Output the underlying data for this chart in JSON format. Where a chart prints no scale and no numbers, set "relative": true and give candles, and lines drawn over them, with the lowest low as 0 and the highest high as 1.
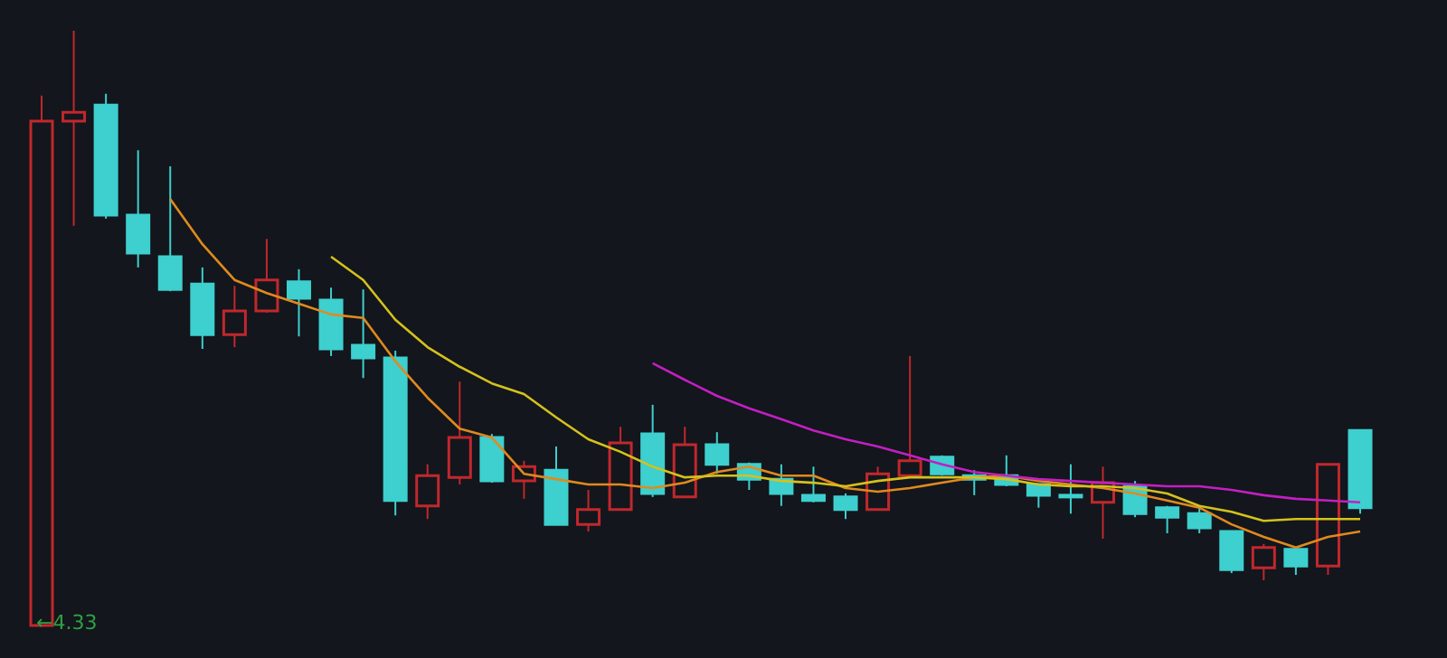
{
  "chart_data": {
    "type": "candlestick",
    "relative": true,
    "categories": [
      null,
      null,
      null,
      null,
      null,
      null,
      null,
      null,
      null,
      null,
      null,
      null,
      null,
      null,
      null,
      null,
      null,
      null,
      null,
      null,
      null,
      null,
      null,
      null,
      null,
      null,
      null,
      null,
      null,
      null,
      null,
      null,
      null,
      null,
      null,
      null,
      null,
      null,
      null,
      null,
      null,
      null
    ],
    "ohlc": [
      [
        0,
        0.891,
        0,
        0.848
      ],
      [
        0.848,
        1,
        0.672,
        0.863
      ],
      [
        0.875,
        0.894,
        0.684,
        0.69
      ],
      [
        0.69,
        0.799,
        0.602,
        0.626
      ],
      [
        0.62,
        0.772,
        0.562,
        0.565
      ],
      [
        0.574,
        0.602,
        0.465,
        0.489
      ],
      [
        0.489,
        0.571,
        0.468,
        0.529
      ],
      [
        0.529,
        0.65,
        0.526,
        0.581
      ],
      [
        0.578,
        0.599,
        0.486,
        0.55
      ],
      [
        0.547,
        0.568,
        0.453,
        0.465
      ],
      [
        0.471,
        0.565,
        0.416,
        0.45
      ],
      [
        0.45,
        0.462,
        0.185,
        0.21
      ],
      [
        0.201,
        0.271,
        0.179,
        0.252
      ],
      [
        0.249,
        0.41,
        0.237,
        0.316
      ],
      [
        0.316,
        0.322,
        0.24,
        0.243
      ],
      [
        0.243,
        0.277,
        0.213,
        0.267
      ],
      [
        0.261,
        0.301,
        0.17,
        0.17
      ],
      [
        0.17,
        0.228,
        0.158,
        0.195
      ],
      [
        0.195,
        0.334,
        0.195,
        0.307
      ],
      [
        0.322,
        0.371,
        0.216,
        0.222
      ],
      [
        0.216,
        0.334,
        0.216,
        0.304
      ],
      [
        0.304,
        0.325,
        0.255,
        0.271
      ],
      [
        0.271,
        0.274,
        0.228,
        0.246
      ],
      [
        0.246,
        0.271,
        0.201,
        0.222
      ],
      [
        0.219,
        0.267,
        0.207,
        0.21
      ],
      [
        0.216,
        0.222,
        0.179,
        0.195
      ],
      [
        0.195,
        0.267,
        0.195,
        0.255
      ],
      [
        0.252,
        0.453,
        0.252,
        0.277
      ],
      [
        0.283,
        0.286,
        0.252,
        0.255
      ],
      [
        0.252,
        0.261,
        0.219,
        0.246
      ],
      [
        0.252,
        0.286,
        0.234,
        0.237
      ],
      [
        0.237,
        0.237,
        0.198,
        0.219
      ],
      [
        0.219,
        0.271,
        0.188,
        0.216
      ],
      [
        0.207,
        0.267,
        0.146,
        0.24
      ],
      [
        0.234,
        0.243,
        0.182,
        0.188
      ],
      [
        0.198,
        0.201,
        0.155,
        0.182
      ],
      [
        0.188,
        0.201,
        0.155,
        0.164
      ],
      [
        0.158,
        0.158,
        0.088,
        0.094
      ],
      [
        0.097,
        0.137,
        0.076,
        0.131
      ],
      [
        0.128,
        0.131,
        0.085,
        0.1
      ],
      [
        0.1,
        0.271,
        0.085,
        0.271
      ],
      [
        0.328,
        0.328,
        0.188,
        0.198
      ]
    ],
    "colors": [
      "#c0282d",
      "#c0282d",
      "#3ecfcf",
      "#3ecfcf",
      "#3ecfcf",
      "#3ecfcf",
      "#c0282d",
      "#c0282d",
      "#3ecfcf",
      "#3ecfcf",
      "#3ecfcf",
      "#3ecfcf",
      "#c0282d",
      "#c0282d",
      "#3ecfcf",
      "#c0282d",
      "#3ecfcf",
      "#c0282d",
      "#c0282d",
      "#3ecfcf",
      "#c0282d",
      "#3ecfcf",
      "#3ecfcf",
      "#3ecfcf",
      "#3ecfcf",
      "#3ecfcf",
      "#c0282d",
      "#c0282d",
      "#3ecfcf",
      "#3ecfcf",
      "#3ecfcf",
      "#3ecfcf",
      "#3ecfcf",
      "#c0282d",
      "#3ecfcf",
      "#3ecfcf",
      "#3ecfcf",
      "#3ecfcf",
      "#c0282d",
      "#3ecfcf",
      "#c0282d",
      "#3ecfcf"
    ],
    "series": [
      {
        "type": "line",
        "color": "#e08a1e",
        "values": [
          null,
          null,
          null,
          null,
          0.717,
          0.641,
          0.581,
          0.559,
          0.541,
          0.523,
          0.517,
          0.444,
          0.383,
          0.331,
          0.316,
          0.255,
          0.246,
          0.237,
          0.237,
          0.231,
          0.24,
          0.258,
          0.267,
          0.252,
          0.252,
          0.231,
          0.225,
          0.231,
          0.24,
          0.249,
          0.252,
          0.243,
          0.237,
          0.231,
          0.222,
          0.21,
          0.198,
          0.17,
          0.149,
          0.131,
          0.149,
          0.158
        ]
      },
      {
        "type": "line",
        "color": "#d4c21c",
        "values": [
          null,
          null,
          null,
          null,
          null,
          null,
          null,
          null,
          null,
          0.62,
          0.581,
          0.514,
          0.468,
          0.435,
          0.407,
          0.389,
          0.35,
          0.313,
          0.292,
          0.267,
          0.249,
          0.252,
          0.252,
          0.243,
          0.24,
          0.234,
          0.243,
          0.249,
          0.249,
          0.249,
          0.246,
          0.237,
          0.234,
          0.234,
          0.231,
          0.222,
          0.201,
          0.191,
          0.176,
          0.179,
          0.179,
          0.179
        ]
      },
      {
        "type": "line",
        "color": "#c21fc2",
        "values": [
          null,
          null,
          null,
          null,
          null,
          null,
          null,
          null,
          null,
          null,
          null,
          null,
          null,
          null,
          null,
          null,
          null,
          null,
          null,
          0.441,
          0.413,
          0.386,
          0.365,
          0.347,
          0.328,
          0.313,
          0.301,
          0.286,
          0.271,
          0.258,
          0.252,
          0.246,
          0.243,
          0.24,
          0.237,
          0.234,
          0.234,
          0.228,
          0.219,
          0.213,
          0.21,
          0.207
        ]
      }
    ],
    "annotations": [
      "←4.33"
    ]
  }
}
